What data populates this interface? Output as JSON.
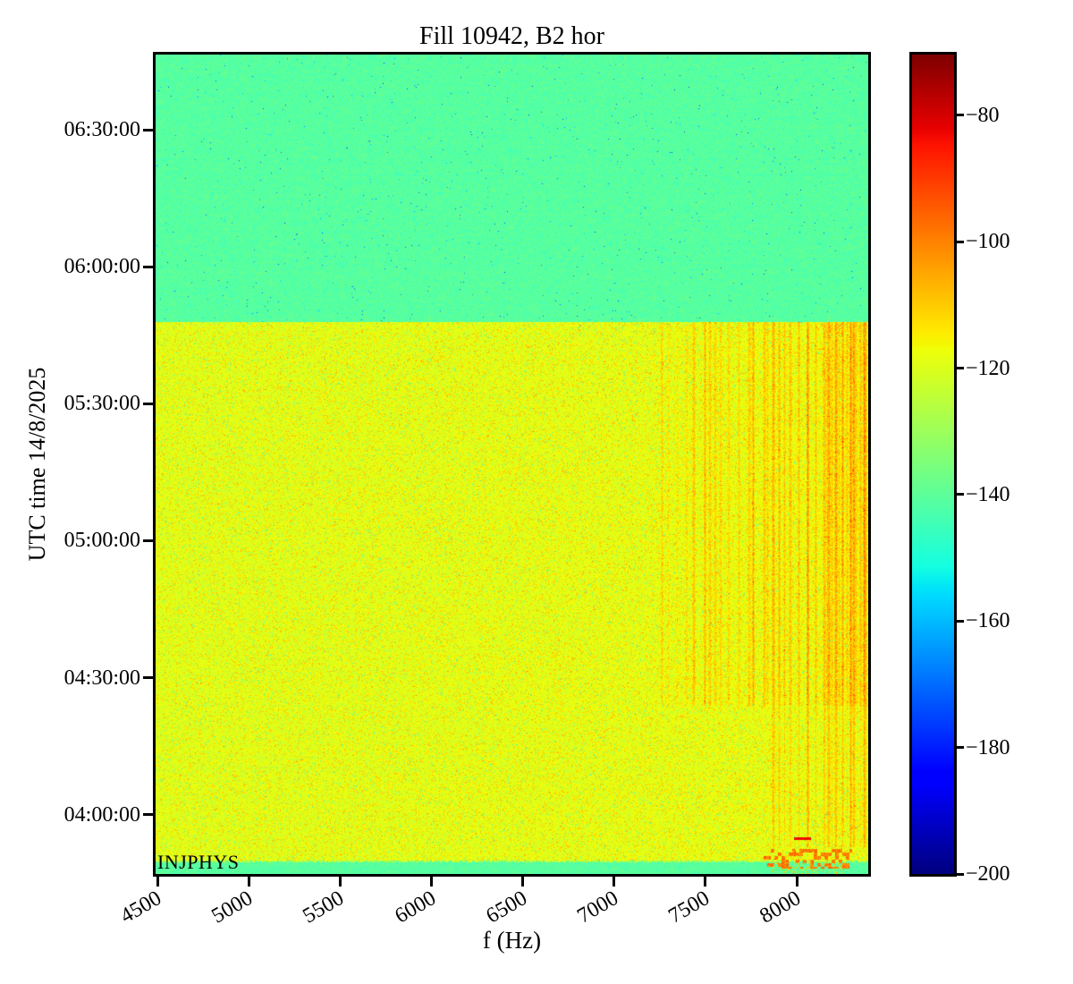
{
  "figure": {
    "title": "Fill 10942, B2 hor",
    "xlabel": "f (Hz)",
    "ylabel": "UTC time 14/8/2025",
    "annotation": "INJPHYS"
  },
  "chart_data": {
    "type": "heatmap",
    "title": "Fill 10942, B2 hor",
    "xlabel": "f (Hz)",
    "ylabel": "UTC time 14/8/2025",
    "x_range_hz": [
      4490,
      8391
    ],
    "xticks": [
      4500,
      5000,
      5500,
      6000,
      6500,
      7000,
      7500,
      8000
    ],
    "yticks": [
      "06:30:00",
      "06:00:00",
      "05:30:00",
      "05:00:00",
      "04:30:00",
      "04:00:00"
    ],
    "y_top_time": "06:46:30",
    "y_bottom_time": "03:47:00",
    "colorbar": {
      "colormap": "jet",
      "vmin": -200,
      "vmax": -70.4,
      "ticks": [
        -80,
        -100,
        -120,
        -140,
        -160,
        -180,
        -200
      ],
      "tick_labels": [
        "−80",
        "−100",
        "−120",
        "−140",
        "−160",
        "−180",
        "−200"
      ]
    },
    "annotation": "INJPHYS",
    "regions": [
      {
        "name": "quiet-band-top",
        "time_from": "05:48:00",
        "time_to": "06:46:30",
        "f_from": 4490,
        "f_to": 8391,
        "mean_level_db": -141,
        "noise_sigma_db": 3.0
      },
      {
        "name": "active-beam-band",
        "time_from": "03:50:00",
        "time_to": "05:48:00",
        "f_from": 4490,
        "f_to": 8391,
        "mean_level_db": -119.5,
        "noise_sigma_db": 2.4
      },
      {
        "name": "harmonic-streaks",
        "time_from": "04:24:00",
        "time_to": "05:48:00",
        "f_from": 7250,
        "f_to": 8391,
        "peak_level_db": -100
      },
      {
        "name": "streak-tail-high-f",
        "time_from": "03:53:00",
        "time_to": "04:24:00",
        "f_from": 7860,
        "f_to": 8391,
        "peak_level_db": -108
      },
      {
        "name": "hot-spots-bottom",
        "time_from": "03:50:30",
        "time_to": "03:58:00",
        "f_from": 7815,
        "f_to": 8300,
        "peak_level_db": -86
      },
      {
        "name": "injphys-quiet-strip",
        "time_from": "03:47:00",
        "time_to": "03:50:00",
        "f_from": 4490,
        "f_to": 8391,
        "mean_level_db": -141
      }
    ]
  }
}
